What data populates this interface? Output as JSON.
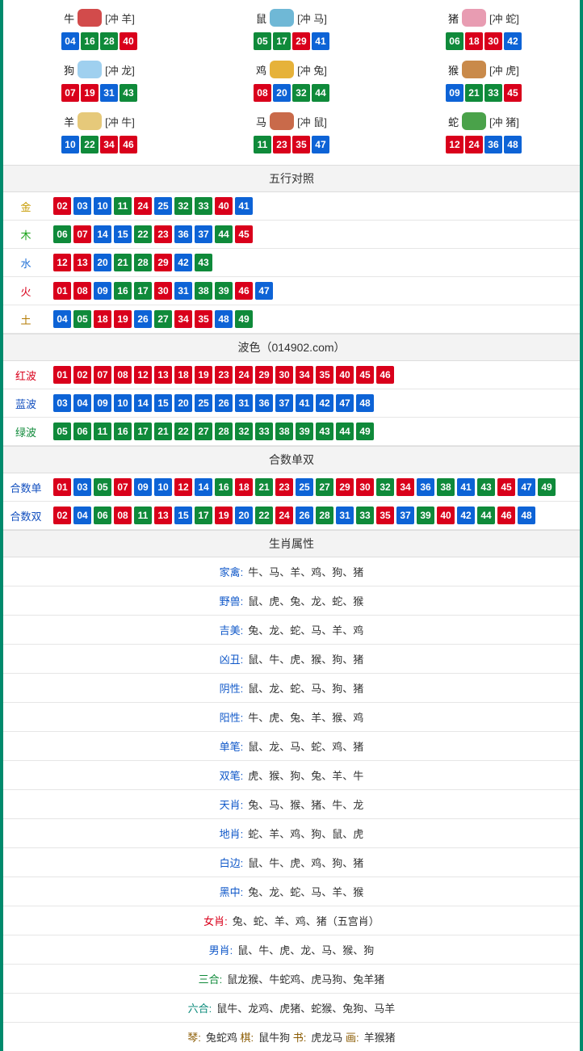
{
  "colors": {
    "frame_border": "#008a6c",
    "ball_red": "#d9001b",
    "ball_blue": "#0d63d6",
    "ball_green": "#0f8a3a",
    "section_bg": "#f3f3f3",
    "row_border": "#e6e6e6"
  },
  "zodiac": [
    {
      "name": "牛",
      "clash": "[冲 羊]",
      "icon_color": "#d24b4b",
      "balls": [
        {
          "n": "04",
          "c": "b"
        },
        {
          "n": "16",
          "c": "g"
        },
        {
          "n": "28",
          "c": "g"
        },
        {
          "n": "40",
          "c": "r"
        }
      ]
    },
    {
      "name": "鼠",
      "clash": "[冲 马]",
      "icon_color": "#6fb8d6",
      "balls": [
        {
          "n": "05",
          "c": "g"
        },
        {
          "n": "17",
          "c": "g"
        },
        {
          "n": "29",
          "c": "r"
        },
        {
          "n": "41",
          "c": "b"
        }
      ]
    },
    {
      "name": "猪",
      "clash": "[冲 蛇]",
      "icon_color": "#e89cb2",
      "balls": [
        {
          "n": "06",
          "c": "g"
        },
        {
          "n": "18",
          "c": "r"
        },
        {
          "n": "30",
          "c": "r"
        },
        {
          "n": "42",
          "c": "b"
        }
      ]
    },
    {
      "name": "狗",
      "clash": "[冲 龙]",
      "icon_color": "#9fd0ef",
      "balls": [
        {
          "n": "07",
          "c": "r"
        },
        {
          "n": "19",
          "c": "r"
        },
        {
          "n": "31",
          "c": "b"
        },
        {
          "n": "43",
          "c": "g"
        }
      ]
    },
    {
      "name": "鸡",
      "clash": "[冲 兔]",
      "icon_color": "#e6b23a",
      "balls": [
        {
          "n": "08",
          "c": "r"
        },
        {
          "n": "20",
          "c": "b"
        },
        {
          "n": "32",
          "c": "g"
        },
        {
          "n": "44",
          "c": "g"
        }
      ]
    },
    {
      "name": "猴",
      "clash": "[冲 虎]",
      "icon_color": "#c98a4a",
      "balls": [
        {
          "n": "09",
          "c": "b"
        },
        {
          "n": "21",
          "c": "g"
        },
        {
          "n": "33",
          "c": "g"
        },
        {
          "n": "45",
          "c": "r"
        }
      ]
    },
    {
      "name": "羊",
      "clash": "[冲 牛]",
      "icon_color": "#e6c97a",
      "balls": [
        {
          "n": "10",
          "c": "b"
        },
        {
          "n": "22",
          "c": "g"
        },
        {
          "n": "34",
          "c": "r"
        },
        {
          "n": "46",
          "c": "r"
        }
      ]
    },
    {
      "name": "马",
      "clash": "[冲 鼠]",
      "icon_color": "#c96a4a",
      "balls": [
        {
          "n": "11",
          "c": "g"
        },
        {
          "n": "23",
          "c": "r"
        },
        {
          "n": "35",
          "c": "r"
        },
        {
          "n": "47",
          "c": "b"
        }
      ]
    },
    {
      "name": "蛇",
      "clash": "[冲 猪]",
      "icon_color": "#4aa24a",
      "balls": [
        {
          "n": "12",
          "c": "r"
        },
        {
          "n": "24",
          "c": "r"
        },
        {
          "n": "36",
          "c": "b"
        },
        {
          "n": "48",
          "c": "b"
        }
      ]
    }
  ],
  "wuxing": {
    "title": "五行对照",
    "rows": [
      {
        "label": "金",
        "label_class": "lbl-gold",
        "balls": [
          {
            "n": "02",
            "c": "r"
          },
          {
            "n": "03",
            "c": "b"
          },
          {
            "n": "10",
            "c": "b"
          },
          {
            "n": "11",
            "c": "g"
          },
          {
            "n": "24",
            "c": "r"
          },
          {
            "n": "25",
            "c": "b"
          },
          {
            "n": "32",
            "c": "g"
          },
          {
            "n": "33",
            "c": "g"
          },
          {
            "n": "40",
            "c": "r"
          },
          {
            "n": "41",
            "c": "b"
          }
        ]
      },
      {
        "label": "木",
        "label_class": "lbl-wood",
        "balls": [
          {
            "n": "06",
            "c": "g"
          },
          {
            "n": "07",
            "c": "r"
          },
          {
            "n": "14",
            "c": "b"
          },
          {
            "n": "15",
            "c": "b"
          },
          {
            "n": "22",
            "c": "g"
          },
          {
            "n": "23",
            "c": "r"
          },
          {
            "n": "36",
            "c": "b"
          },
          {
            "n": "37",
            "c": "b"
          },
          {
            "n": "44",
            "c": "g"
          },
          {
            "n": "45",
            "c": "r"
          }
        ]
      },
      {
        "label": "水",
        "label_class": "lbl-water",
        "balls": [
          {
            "n": "12",
            "c": "r"
          },
          {
            "n": "13",
            "c": "r"
          },
          {
            "n": "20",
            "c": "b"
          },
          {
            "n": "21",
            "c": "g"
          },
          {
            "n": "28",
            "c": "g"
          },
          {
            "n": "29",
            "c": "r"
          },
          {
            "n": "42",
            "c": "b"
          },
          {
            "n": "43",
            "c": "g"
          }
        ]
      },
      {
        "label": "火",
        "label_class": "lbl-fire",
        "balls": [
          {
            "n": "01",
            "c": "r"
          },
          {
            "n": "08",
            "c": "r"
          },
          {
            "n": "09",
            "c": "b"
          },
          {
            "n": "16",
            "c": "g"
          },
          {
            "n": "17",
            "c": "g"
          },
          {
            "n": "30",
            "c": "r"
          },
          {
            "n": "31",
            "c": "b"
          },
          {
            "n": "38",
            "c": "g"
          },
          {
            "n": "39",
            "c": "g"
          },
          {
            "n": "46",
            "c": "r"
          },
          {
            "n": "47",
            "c": "b"
          }
        ]
      },
      {
        "label": "土",
        "label_class": "lbl-earth",
        "balls": [
          {
            "n": "04",
            "c": "b"
          },
          {
            "n": "05",
            "c": "g"
          },
          {
            "n": "18",
            "c": "r"
          },
          {
            "n": "19",
            "c": "r"
          },
          {
            "n": "26",
            "c": "b"
          },
          {
            "n": "27",
            "c": "g"
          },
          {
            "n": "34",
            "c": "r"
          },
          {
            "n": "35",
            "c": "r"
          },
          {
            "n": "48",
            "c": "b"
          },
          {
            "n": "49",
            "c": "g"
          }
        ]
      }
    ]
  },
  "bose": {
    "title": "波色（014902.com）",
    "rows": [
      {
        "label": "红波",
        "label_class": "lbl-red",
        "balls": [
          {
            "n": "01",
            "c": "r"
          },
          {
            "n": "02",
            "c": "r"
          },
          {
            "n": "07",
            "c": "r"
          },
          {
            "n": "08",
            "c": "r"
          },
          {
            "n": "12",
            "c": "r"
          },
          {
            "n": "13",
            "c": "r"
          },
          {
            "n": "18",
            "c": "r"
          },
          {
            "n": "19",
            "c": "r"
          },
          {
            "n": "23",
            "c": "r"
          },
          {
            "n": "24",
            "c": "r"
          },
          {
            "n": "29",
            "c": "r"
          },
          {
            "n": "30",
            "c": "r"
          },
          {
            "n": "34",
            "c": "r"
          },
          {
            "n": "35",
            "c": "r"
          },
          {
            "n": "40",
            "c": "r"
          },
          {
            "n": "45",
            "c": "r"
          },
          {
            "n": "46",
            "c": "r"
          }
        ]
      },
      {
        "label": "蓝波",
        "label_class": "lbl-blue",
        "balls": [
          {
            "n": "03",
            "c": "b"
          },
          {
            "n": "04",
            "c": "b"
          },
          {
            "n": "09",
            "c": "b"
          },
          {
            "n": "10",
            "c": "b"
          },
          {
            "n": "14",
            "c": "b"
          },
          {
            "n": "15",
            "c": "b"
          },
          {
            "n": "20",
            "c": "b"
          },
          {
            "n": "25",
            "c": "b"
          },
          {
            "n": "26",
            "c": "b"
          },
          {
            "n": "31",
            "c": "b"
          },
          {
            "n": "36",
            "c": "b"
          },
          {
            "n": "37",
            "c": "b"
          },
          {
            "n": "41",
            "c": "b"
          },
          {
            "n": "42",
            "c": "b"
          },
          {
            "n": "47",
            "c": "b"
          },
          {
            "n": "48",
            "c": "b"
          }
        ]
      },
      {
        "label": "绿波",
        "label_class": "lbl-green",
        "balls": [
          {
            "n": "05",
            "c": "g"
          },
          {
            "n": "06",
            "c": "g"
          },
          {
            "n": "11",
            "c": "g"
          },
          {
            "n": "16",
            "c": "g"
          },
          {
            "n": "17",
            "c": "g"
          },
          {
            "n": "21",
            "c": "g"
          },
          {
            "n": "22",
            "c": "g"
          },
          {
            "n": "27",
            "c": "g"
          },
          {
            "n": "28",
            "c": "g"
          },
          {
            "n": "32",
            "c": "g"
          },
          {
            "n": "33",
            "c": "g"
          },
          {
            "n": "38",
            "c": "g"
          },
          {
            "n": "39",
            "c": "g"
          },
          {
            "n": "43",
            "c": "g"
          },
          {
            "n": "44",
            "c": "g"
          },
          {
            "n": "49",
            "c": "g"
          }
        ]
      }
    ]
  },
  "heshu": {
    "title": "合数单双",
    "rows": [
      {
        "label": "合数单",
        "label_class": "lbl-blue",
        "balls": [
          {
            "n": "01",
            "c": "r"
          },
          {
            "n": "03",
            "c": "b"
          },
          {
            "n": "05",
            "c": "g"
          },
          {
            "n": "07",
            "c": "r"
          },
          {
            "n": "09",
            "c": "b"
          },
          {
            "n": "10",
            "c": "b"
          },
          {
            "n": "12",
            "c": "r"
          },
          {
            "n": "14",
            "c": "b"
          },
          {
            "n": "16",
            "c": "g"
          },
          {
            "n": "18",
            "c": "r"
          },
          {
            "n": "21",
            "c": "g"
          },
          {
            "n": "23",
            "c": "r"
          },
          {
            "n": "25",
            "c": "b"
          },
          {
            "n": "27",
            "c": "g"
          },
          {
            "n": "29",
            "c": "r"
          },
          {
            "n": "30",
            "c": "r"
          },
          {
            "n": "32",
            "c": "g"
          },
          {
            "n": "34",
            "c": "r"
          },
          {
            "n": "36",
            "c": "b"
          },
          {
            "n": "38",
            "c": "g"
          },
          {
            "n": "41",
            "c": "b"
          },
          {
            "n": "43",
            "c": "g"
          },
          {
            "n": "45",
            "c": "r"
          },
          {
            "n": "47",
            "c": "b"
          },
          {
            "n": "49",
            "c": "g"
          }
        ]
      },
      {
        "label": "合数双",
        "label_class": "lbl-blue",
        "balls": [
          {
            "n": "02",
            "c": "r"
          },
          {
            "n": "04",
            "c": "b"
          },
          {
            "n": "06",
            "c": "g"
          },
          {
            "n": "08",
            "c": "r"
          },
          {
            "n": "11",
            "c": "g"
          },
          {
            "n": "13",
            "c": "r"
          },
          {
            "n": "15",
            "c": "b"
          },
          {
            "n": "17",
            "c": "g"
          },
          {
            "n": "19",
            "c": "r"
          },
          {
            "n": "20",
            "c": "b"
          },
          {
            "n": "22",
            "c": "g"
          },
          {
            "n": "24",
            "c": "r"
          },
          {
            "n": "26",
            "c": "b"
          },
          {
            "n": "28",
            "c": "g"
          },
          {
            "n": "31",
            "c": "b"
          },
          {
            "n": "33",
            "c": "g"
          },
          {
            "n": "35",
            "c": "r"
          },
          {
            "n": "37",
            "c": "b"
          },
          {
            "n": "39",
            "c": "g"
          },
          {
            "n": "40",
            "c": "r"
          },
          {
            "n": "42",
            "c": "b"
          },
          {
            "n": "44",
            "c": "g"
          },
          {
            "n": "46",
            "c": "r"
          },
          {
            "n": "48",
            "c": "b"
          }
        ]
      }
    ]
  },
  "attrs": {
    "title": "生肖属性",
    "rows": [
      {
        "key": "家禽:",
        "key_class": "k-blue",
        "val": "牛、马、羊、鸡、狗、猪"
      },
      {
        "key": "野兽:",
        "key_class": "k-blue",
        "val": "鼠、虎、兔、龙、蛇、猴"
      },
      {
        "key": "吉美:",
        "key_class": "k-blue",
        "val": "兔、龙、蛇、马、羊、鸡"
      },
      {
        "key": "凶丑:",
        "key_class": "k-blue",
        "val": "鼠、牛、虎、猴、狗、猪"
      },
      {
        "key": "阴性:",
        "key_class": "k-blue",
        "val": "鼠、龙、蛇、马、狗、猪"
      },
      {
        "key": "阳性:",
        "key_class": "k-blue",
        "val": "牛、虎、兔、羊、猴、鸡"
      },
      {
        "key": "单笔:",
        "key_class": "k-blue",
        "val": "鼠、龙、马、蛇、鸡、猪"
      },
      {
        "key": "双笔:",
        "key_class": "k-blue",
        "val": "虎、猴、狗、兔、羊、牛"
      },
      {
        "key": "天肖:",
        "key_class": "k-blue",
        "val": "兔、马、猴、猪、牛、龙"
      },
      {
        "key": "地肖:",
        "key_class": "k-blue",
        "val": "蛇、羊、鸡、狗、鼠、虎"
      },
      {
        "key": "白边:",
        "key_class": "k-blue",
        "val": "鼠、牛、虎、鸡、狗、猪"
      },
      {
        "key": "黑中:",
        "key_class": "k-blue",
        "val": "兔、龙、蛇、马、羊、猴"
      },
      {
        "key": "女肖:",
        "key_class": "k-red",
        "val": "兔、蛇、羊、鸡、猪（五宫肖）"
      },
      {
        "key": "男肖:",
        "key_class": "k-blue",
        "val": "鼠、牛、虎、龙、马、猴、狗"
      },
      {
        "key": "三合:",
        "key_class": "k-green",
        "val": "鼠龙猴、牛蛇鸡、虎马狗、兔羊猪"
      },
      {
        "key": "六合:",
        "key_class": "k-teal",
        "val": "鼠牛、龙鸡、虎猪、蛇猴、兔狗、马羊"
      }
    ],
    "footer_parts": [
      {
        "k": "琴:",
        "kc": "k-brown",
        "v": "兔蛇鸡  "
      },
      {
        "k": "棋:",
        "kc": "k-brown",
        "v": "鼠牛狗  "
      },
      {
        "k": "书:",
        "kc": "k-brown",
        "v": "虎龙马  "
      },
      {
        "k": "画:",
        "kc": "k-brown",
        "v": "羊猴猪"
      }
    ]
  }
}
